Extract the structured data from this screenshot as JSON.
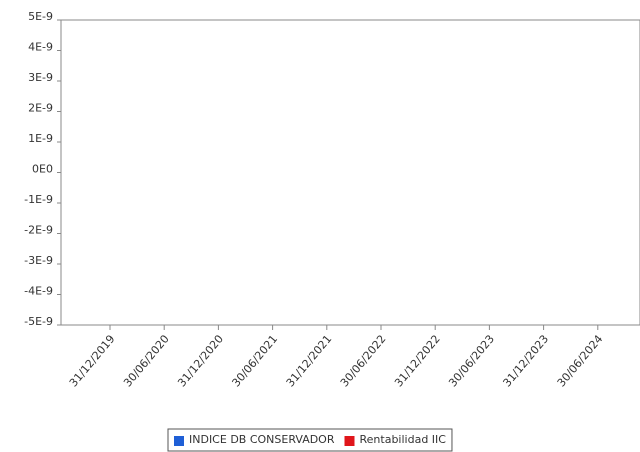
{
  "chart_data": {
    "type": "line",
    "categories": [
      "31/12/2019",
      "30/06/2020",
      "31/12/2020",
      "30/06/2021",
      "31/12/2021",
      "30/06/2022",
      "31/12/2022",
      "30/06/2023",
      "31/12/2023",
      "30/06/2024"
    ],
    "series": [
      {
        "name": "INDICE DB CONSERVADOR",
        "color": "#1f5fd6",
        "values": [
          null,
          null,
          null,
          null,
          null,
          null,
          null,
          null,
          null,
          null
        ]
      },
      {
        "name": "Rentabilidad IIC",
        "color": "#e0161b",
        "values": [
          null,
          null,
          null,
          null,
          null,
          null,
          null,
          null,
          null,
          null
        ]
      }
    ],
    "ylim": [
      -5e-09,
      5e-09
    ],
    "yticks": [
      {
        "value": 5e-09,
        "label": "5E-9"
      },
      {
        "value": 4e-09,
        "label": "4E-9"
      },
      {
        "value": 3e-09,
        "label": "3E-9"
      },
      {
        "value": 2e-09,
        "label": "2E-9"
      },
      {
        "value": 1e-09,
        "label": "1E-9"
      },
      {
        "value": 0,
        "label": "0E0"
      },
      {
        "value": -1e-09,
        "label": "-1E-9"
      },
      {
        "value": -2e-09,
        "label": "-2E-9"
      },
      {
        "value": -3e-09,
        "label": "-3E-9"
      },
      {
        "value": -4e-09,
        "label": "-4E-9"
      },
      {
        "value": -5e-09,
        "label": "-5E-9"
      }
    ],
    "legend": "bottom"
  }
}
